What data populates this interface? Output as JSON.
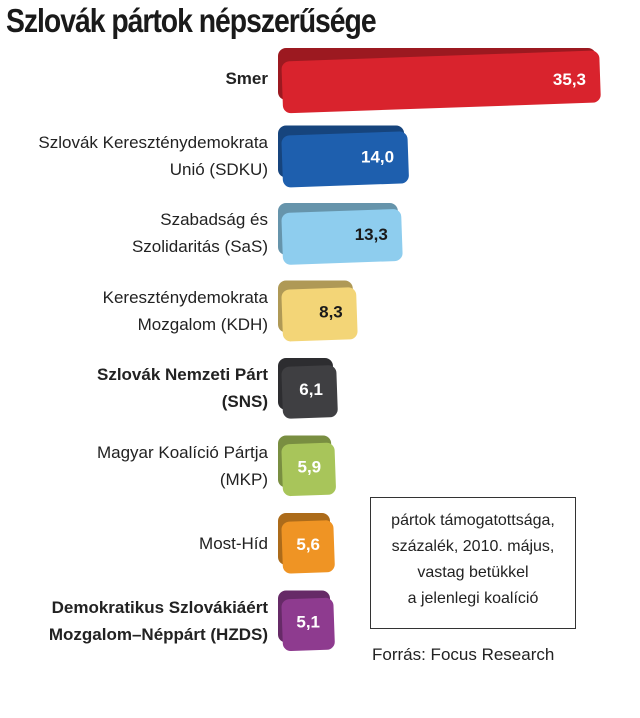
{
  "chart_data": {
    "type": "bar",
    "orientation": "horizontal",
    "title": "Szlovák pártok népszerűsége",
    "categories": [
      {
        "lines": [
          "Smer"
        ],
        "bold": true
      },
      {
        "lines": [
          "Szlovák Kereszténydemokrata",
          "Unió (SDKU)"
        ],
        "bold": false
      },
      {
        "lines": [
          "Szabadság és",
          "Szolidaritás (SaS)"
        ],
        "bold": false
      },
      {
        "lines": [
          "Kereszténydemokrata",
          "Mozgalom (KDH)"
        ],
        "bold": false
      },
      {
        "lines": [
          "Szlovák Nemzeti Párt",
          "(SNS)"
        ],
        "bold": true
      },
      {
        "lines": [
          "Magyar Koalíció Pártja",
          "(MKP)"
        ],
        "bold": false
      },
      {
        "lines": [
          "Most-Híd"
        ],
        "bold": false
      },
      {
        "lines": [
          "Demokratikus Szlovákiáért",
          "Mozgalom–Néppárt (HZDS)"
        ],
        "bold": true
      }
    ],
    "values": [
      35.3,
      14.0,
      13.3,
      8.3,
      6.1,
      5.9,
      5.6,
      5.1
    ],
    "value_labels": [
      "35,3",
      "14,0",
      "13,3",
      "8,3",
      "6,1",
      "5,9",
      "5,6",
      "5,1"
    ],
    "colors": [
      "#d9232d",
      "#1e5fae",
      "#8ecdee",
      "#f3d577",
      "#3f3f42",
      "#a8c55a",
      "#ef9424",
      "#8e3b8f"
    ],
    "label_colors": [
      "#ffffff",
      "#ffffff",
      "#1a1a1a",
      "#1a1a1a",
      "#ffffff",
      "#ffffff",
      "#ffffff",
      "#ffffff"
    ],
    "legend_note": [
      "pártok támogatottsága,",
      "százalék, 2010. május,",
      "vastag betükkel",
      "a jelenlegi koalíció"
    ],
    "source": "Forrás: Focus Research"
  }
}
